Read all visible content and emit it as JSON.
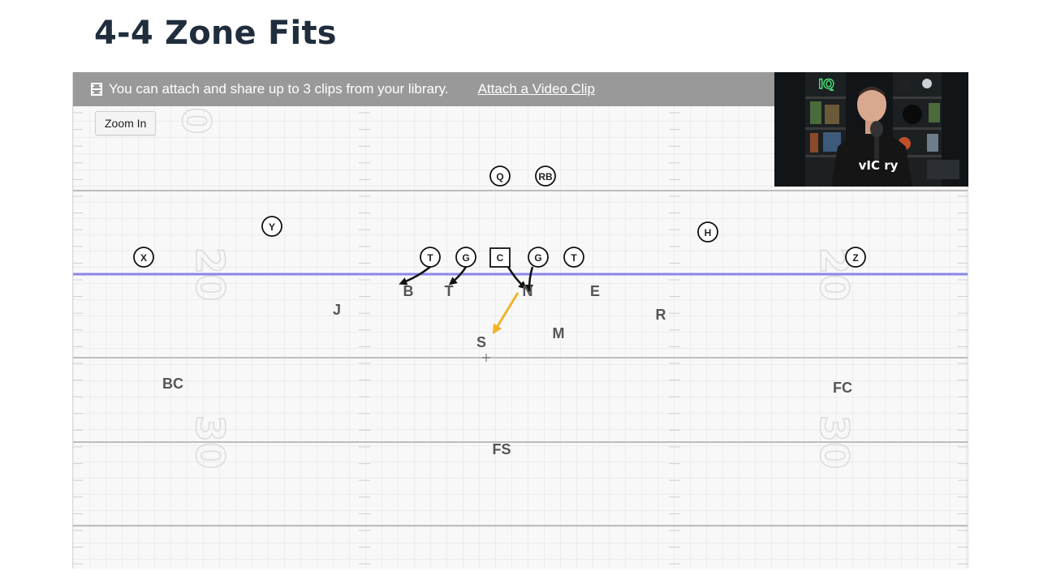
{
  "page": {
    "title": "4-4 Zone Fits"
  },
  "banner": {
    "icon": "film-icon",
    "text": "You can attach and share up to 3 clips from your library.",
    "link": "Attach a Video Clip"
  },
  "toolbar": {
    "zoom_label": "Zoom In"
  },
  "field": {
    "yard_numbers": [
      "0",
      "20",
      "20",
      "30",
      "30"
    ],
    "line_of_scrimmage_color": "#8b86e8"
  },
  "offense": [
    "Q",
    "RB",
    "Y",
    "H",
    "X",
    "T",
    "G",
    "C",
    "G",
    "T",
    "Z"
  ],
  "defense": [
    "B",
    "T",
    "N",
    "E",
    "J",
    "R",
    "M",
    "S",
    "BC",
    "FC",
    "FS"
  ],
  "video": {
    "logo_text": "vIC ry",
    "sign_text": "IQ"
  },
  "colors": {
    "banner": "#999999",
    "arrow_black": "#111111",
    "arrow_gold": "#f0b429"
  }
}
